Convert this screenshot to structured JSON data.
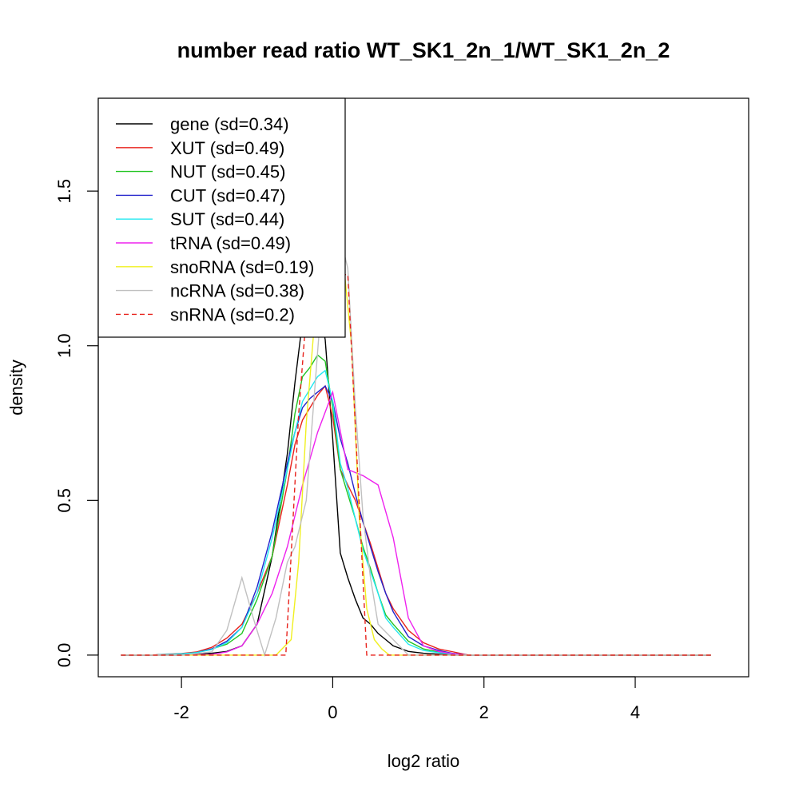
{
  "chart_data": {
    "type": "line",
    "title": "number read ratio WT_SK1_2n_1/WT_SK1_2n_2",
    "xlabel": "log2 ratio",
    "ylabel": "density",
    "xlim": [
      -3.1,
      5.5
    ],
    "ylim": [
      -0.07,
      1.8
    ],
    "x_ticks": [
      -2,
      0,
      2,
      4
    ],
    "y_ticks": [
      0.0,
      0.5,
      1.0,
      1.5
    ],
    "x_tick_labels": [
      "-2",
      "0",
      "2",
      "4"
    ],
    "y_tick_labels": [
      "0.0",
      "0.5",
      "1.0",
      "1.5"
    ],
    "grid": false,
    "legend_position": "top-left",
    "series": [
      {
        "name": "gene (sd=0.34)",
        "color": "#000000",
        "dash": "solid",
        "x": [
          -2.8,
          -2.6,
          -2.4,
          -2.2,
          -2.0,
          -1.8,
          -1.6,
          -1.4,
          -1.2,
          -1.0,
          -0.8,
          -0.6,
          -0.5,
          -0.4,
          -0.3,
          -0.2,
          -0.1,
          0.0,
          0.1,
          0.2,
          0.3,
          0.4,
          0.5,
          0.6,
          0.7,
          0.8,
          1.0,
          1.2,
          1.4,
          1.6,
          1.8,
          5.0
        ],
        "y": [
          0,
          0,
          0,
          0,
          0,
          0.003,
          0.006,
          0.012,
          0.03,
          0.1,
          0.32,
          0.65,
          0.88,
          1.08,
          1.2,
          1.16,
          1.02,
          0.7,
          0.33,
          0.25,
          0.18,
          0.12,
          0.1,
          0.07,
          0.05,
          0.03,
          0.012,
          0.006,
          0.003,
          0,
          0,
          0
        ]
      },
      {
        "name": "XUT (sd=0.49)",
        "color": "#e8221c",
        "dash": "solid",
        "x": [
          -2.8,
          -2.4,
          -2.2,
          -2.0,
          -1.8,
          -1.6,
          -1.4,
          -1.2,
          -1.0,
          -0.8,
          -0.6,
          -0.5,
          -0.4,
          -0.3,
          -0.2,
          -0.1,
          0.0,
          0.1,
          0.2,
          0.3,
          0.4,
          0.5,
          0.6,
          0.7,
          0.8,
          1.0,
          1.2,
          1.4,
          1.6,
          1.8,
          5.0
        ],
        "y": [
          0,
          0,
          0.003,
          0.005,
          0.01,
          0.025,
          0.055,
          0.1,
          0.2,
          0.32,
          0.55,
          0.68,
          0.76,
          0.8,
          0.84,
          0.87,
          0.77,
          0.6,
          0.55,
          0.5,
          0.43,
          0.36,
          0.28,
          0.2,
          0.15,
          0.08,
          0.04,
          0.02,
          0.01,
          0,
          0
        ]
      },
      {
        "name": "NUT (sd=0.45)",
        "color": "#22c422",
        "dash": "solid",
        "x": [
          -2.8,
          -2.4,
          -2.2,
          -2.0,
          -1.8,
          -1.6,
          -1.4,
          -1.2,
          -1.0,
          -0.8,
          -0.6,
          -0.5,
          -0.4,
          -0.3,
          -0.2,
          -0.1,
          0.0,
          0.1,
          0.2,
          0.3,
          0.4,
          0.5,
          0.6,
          0.7,
          0.8,
          1.0,
          1.2,
          1.4,
          1.6,
          1.8,
          5.0
        ],
        "y": [
          0,
          0,
          0.002,
          0.004,
          0.008,
          0.02,
          0.035,
          0.07,
          0.18,
          0.32,
          0.6,
          0.78,
          0.9,
          0.93,
          0.97,
          0.95,
          0.8,
          0.6,
          0.52,
          0.44,
          0.35,
          0.28,
          0.2,
          0.13,
          0.1,
          0.045,
          0.02,
          0.01,
          0.005,
          0,
          0
        ]
      },
      {
        "name": "CUT (sd=0.47)",
        "color": "#2222cc",
        "dash": "solid",
        "x": [
          -2.8,
          -2.4,
          -2.2,
          -2.0,
          -1.8,
          -1.6,
          -1.4,
          -1.2,
          -1.0,
          -0.8,
          -0.6,
          -0.5,
          -0.4,
          -0.3,
          -0.2,
          -0.1,
          0.0,
          0.1,
          0.2,
          0.3,
          0.4,
          0.5,
          0.6,
          0.7,
          0.8,
          1.0,
          1.2,
          1.4,
          1.6,
          1.8,
          5.0
        ],
        "y": [
          0,
          0,
          0.002,
          0.004,
          0.008,
          0.02,
          0.045,
          0.09,
          0.22,
          0.4,
          0.62,
          0.72,
          0.8,
          0.83,
          0.85,
          0.87,
          0.82,
          0.7,
          0.62,
          0.52,
          0.43,
          0.35,
          0.27,
          0.2,
          0.14,
          0.06,
          0.03,
          0.015,
          0.005,
          0,
          0
        ]
      },
      {
        "name": "SUT (sd=0.44)",
        "color": "#22e8f0",
        "dash": "solid",
        "x": [
          -2.8,
          -2.4,
          -2.2,
          -2.0,
          -1.8,
          -1.6,
          -1.4,
          -1.2,
          -1.0,
          -0.8,
          -0.6,
          -0.5,
          -0.4,
          -0.3,
          -0.2,
          -0.1,
          0.0,
          0.1,
          0.2,
          0.3,
          0.4,
          0.5,
          0.6,
          0.7,
          0.8,
          1.0,
          1.2,
          1.4,
          1.6,
          1.8,
          5.0
        ],
        "y": [
          0,
          0,
          0.002,
          0.004,
          0.008,
          0.018,
          0.04,
          0.09,
          0.2,
          0.38,
          0.6,
          0.72,
          0.82,
          0.86,
          0.9,
          0.92,
          0.82,
          0.62,
          0.54,
          0.44,
          0.34,
          0.27,
          0.2,
          0.12,
          0.09,
          0.035,
          0.015,
          0.008,
          0.003,
          0,
          0
        ]
      },
      {
        "name": "tRNA (sd=0.49)",
        "color": "#ee22ee",
        "dash": "solid",
        "x": [
          -2.8,
          -2.0,
          -1.6,
          -1.4,
          -1.2,
          -1.0,
          -0.8,
          -0.6,
          -0.4,
          -0.2,
          0.0,
          0.2,
          0.4,
          0.6,
          0.8,
          1.0,
          1.2,
          1.4,
          1.6,
          1.8,
          5.0
        ],
        "y": [
          0,
          0,
          0.002,
          0.01,
          0.03,
          0.1,
          0.2,
          0.35,
          0.55,
          0.72,
          0.85,
          0.6,
          0.58,
          0.55,
          0.38,
          0.12,
          0.03,
          0.012,
          0.004,
          0,
          0
        ]
      },
      {
        "name": "snoRNA (sd=0.19)",
        "color": "#f0f020",
        "dash": "solid",
        "x": [
          -2.8,
          -1.0,
          -0.75,
          -0.55,
          -0.45,
          -0.35,
          -0.25,
          -0.15,
          -0.05,
          0.05,
          0.15,
          0.25,
          0.35,
          0.45,
          0.55,
          0.65,
          0.75,
          5.0
        ],
        "y": [
          0,
          0,
          0,
          0.05,
          0.3,
          0.75,
          1.05,
          1.2,
          1.28,
          1.3,
          1.25,
          1.0,
          0.45,
          0.15,
          0.05,
          0.02,
          0,
          0
        ]
      },
      {
        "name": "ncRNA (sd=0.38)",
        "color": "#c0c0c0",
        "dash": "solid",
        "x": [
          -2.8,
          -2.0,
          -1.6,
          -1.4,
          -1.2,
          -1.05,
          -0.9,
          -0.75,
          -0.6,
          -0.5,
          -0.35,
          -0.2,
          -0.1,
          0.0,
          0.1,
          0.2,
          0.3,
          0.4,
          0.5,
          0.6,
          1.0,
          5.0
        ],
        "y": [
          0,
          0,
          0.01,
          0.08,
          0.25,
          0.12,
          0.0,
          0.12,
          0.3,
          0.35,
          0.5,
          0.98,
          1.3,
          1.38,
          1.35,
          1.25,
          0.8,
          0.45,
          0.25,
          0.1,
          0,
          0
        ]
      },
      {
        "name": "snRNA (sd=0.2)",
        "color": "#e8221c",
        "dash": "dashed",
        "x": [
          -2.8,
          -0.62,
          -0.45,
          -0.35,
          -0.2,
          0.1,
          0.15,
          0.2,
          0.45,
          5.0
        ],
        "y": [
          0,
          0,
          0.78,
          1.1,
          1.14,
          1.23,
          1.23,
          1.23,
          0,
          0
        ]
      }
    ]
  }
}
